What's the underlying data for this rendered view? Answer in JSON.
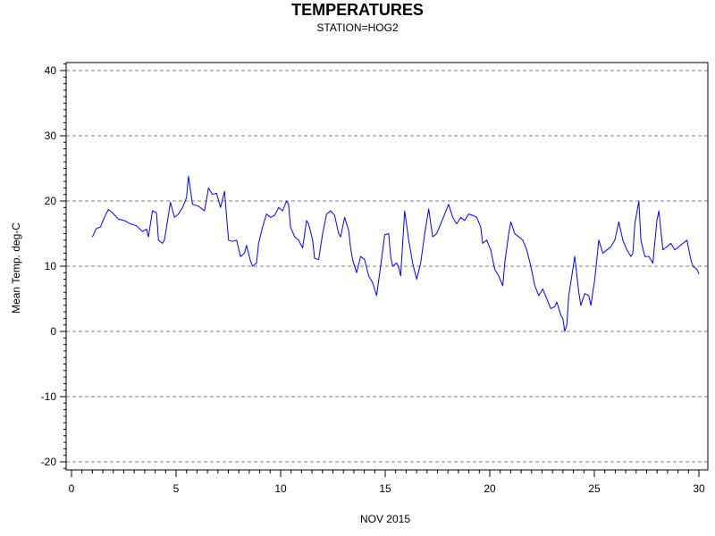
{
  "chart_data": {
    "type": "line",
    "title": "TEMPERATURES",
    "subtitle": "STATION=HOG2",
    "xlabel": "NOV 2015",
    "ylabel": "Mean Temp. deg-C",
    "xlim": [
      0,
      30
    ],
    "ylim": [
      -21,
      41
    ],
    "x_ticks": [
      0,
      5,
      10,
      15,
      20,
      25,
      30
    ],
    "y_ticks": [
      -20,
      -10,
      0,
      10,
      20,
      30,
      40
    ],
    "grid": "horizontal dashed",
    "line_color": "#0000ff",
    "series": [
      {
        "values": [
          [
            1.0,
            14.5
          ],
          [
            1.2,
            15.8
          ],
          [
            1.4,
            16.0
          ],
          [
            1.6,
            17.5
          ],
          [
            1.8,
            18.7
          ],
          [
            2.0,
            18.2
          ],
          [
            2.3,
            17.2
          ],
          [
            2.6,
            17.0
          ],
          [
            2.9,
            16.5
          ],
          [
            3.2,
            16.2
          ],
          [
            3.5,
            15.3
          ],
          [
            3.7,
            15.7
          ],
          [
            3.8,
            14.5
          ],
          [
            4.0,
            18.5
          ],
          [
            4.2,
            18.2
          ],
          [
            4.3,
            14.0
          ],
          [
            4.5,
            13.5
          ],
          [
            4.6,
            14.0
          ],
          [
            4.7,
            16.0
          ],
          [
            4.9,
            19.8
          ],
          [
            5.1,
            17.5
          ],
          [
            5.3,
            18.0
          ],
          [
            5.5,
            19.0
          ],
          [
            5.7,
            20.5
          ],
          [
            5.8,
            23.8
          ],
          [
            6.0,
            19.5
          ],
          [
            6.3,
            19.2
          ],
          [
            6.6,
            18.5
          ],
          [
            6.8,
            22.0
          ],
          [
            7.0,
            21.0
          ],
          [
            7.2,
            21.2
          ],
          [
            7.4,
            19.0
          ],
          [
            7.6,
            21.5
          ],
          [
            7.8,
            14.0
          ],
          [
            8.0,
            13.8
          ],
          [
            8.2,
            14.0
          ],
          [
            8.4,
            11.5
          ],
          [
            8.6,
            12.0
          ],
          [
            8.7,
            13.2
          ],
          [
            8.9,
            10.8
          ],
          [
            9.0,
            10.0
          ],
          [
            9.2,
            10.5
          ],
          [
            9.3,
            13.5
          ],
          [
            9.5,
            16.0
          ],
          [
            9.7,
            18.0
          ],
          [
            9.9,
            17.5
          ],
          [
            10.1,
            17.8
          ],
          [
            10.3,
            19.0
          ],
          [
            10.5,
            18.5
          ],
          [
            10.7,
            20.0
          ],
          [
            10.8,
            19.5
          ],
          [
            10.9,
            16.0
          ],
          [
            11.1,
            14.5
          ],
          [
            11.3,
            14.0
          ],
          [
            11.5,
            12.8
          ],
          [
            11.7,
            17.0
          ],
          [
            11.8,
            16.5
          ],
          [
            12.0,
            14.0
          ],
          [
            12.1,
            11.2
          ],
          [
            12.3,
            11.0
          ],
          [
            12.5,
            15.0
          ],
          [
            12.7,
            18.0
          ],
          [
            12.9,
            18.5
          ],
          [
            13.1,
            17.8
          ],
          [
            13.3,
            15.0
          ],
          [
            13.4,
            14.5
          ],
          [
            13.6,
            17.5
          ],
          [
            13.8,
            15.5
          ],
          [
            13.9,
            12.8
          ],
          [
            14.0,
            11.0
          ],
          [
            14.2,
            9.0
          ],
          [
            14.4,
            11.5
          ],
          [
            14.6,
            11.0
          ],
          [
            14.8,
            8.5
          ],
          [
            15.0,
            7.5
          ],
          [
            15.2,
            5.5
          ],
          [
            15.4,
            10.0
          ],
          [
            15.6,
            14.8
          ],
          [
            15.8,
            15.0
          ],
          [
            15.9,
            11.5
          ],
          [
            16.0,
            10.0
          ],
          [
            16.2,
            10.5
          ],
          [
            16.3,
            9.8
          ],
          [
            16.4,
            8.5
          ],
          [
            16.6,
            18.5
          ],
          [
            16.8,
            14.0
          ],
          [
            17.0,
            10.5
          ],
          [
            17.2,
            8.0
          ],
          [
            17.4,
            10.5
          ],
          [
            17.6,
            15.0
          ],
          [
            17.8,
            18.8
          ],
          [
            18.0,
            14.5
          ],
          [
            18.2,
            15.0
          ],
          [
            18.4,
            16.5
          ],
          [
            18.6,
            18.0
          ],
          [
            18.8,
            19.5
          ],
          [
            19.0,
            17.5
          ],
          [
            19.2,
            16.5
          ],
          [
            19.4,
            17.5
          ],
          [
            19.6,
            17.0
          ],
          [
            19.8,
            18.0
          ],
          [
            20.0,
            17.8
          ],
          [
            20.2,
            17.5
          ],
          [
            20.4,
            16.0
          ],
          [
            20.5,
            13.5
          ],
          [
            20.7,
            14.0
          ],
          [
            20.9,
            12.5
          ],
          [
            21.1,
            9.5
          ],
          [
            21.3,
            8.5
          ],
          [
            21.5,
            7.0
          ],
          [
            21.6,
            10.5
          ],
          [
            21.8,
            15.0
          ],
          [
            21.9,
            16.8
          ],
          [
            22.1,
            15.0
          ],
          [
            22.3,
            14.5
          ],
          [
            22.5,
            14.0
          ],
          [
            22.7,
            12.5
          ],
          [
            22.9,
            10.0
          ],
          [
            23.1,
            7.0
          ],
          [
            23.3,
            5.5
          ],
          [
            23.5,
            6.5
          ],
          [
            23.7,
            5.0
          ],
          [
            23.9,
            3.5
          ],
          [
            24.1,
            3.8
          ],
          [
            24.2,
            4.5
          ],
          [
            24.4,
            2.5
          ],
          [
            24.5,
            2.0
          ],
          [
            24.6,
            0.0
          ],
          [
            24.7,
            1.0
          ],
          [
            24.8,
            5.5
          ],
          [
            25.0,
            9.5
          ],
          [
            25.1,
            11.5
          ],
          [
            25.3,
            6.0
          ],
          [
            25.4,
            4.0
          ],
          [
            25.6,
            5.8
          ],
          [
            25.8,
            5.5
          ],
          [
            25.9,
            4.0
          ],
          [
            26.1,
            8.0
          ],
          [
            26.3,
            14.0
          ],
          [
            26.5,
            12.0
          ],
          [
            26.7,
            12.5
          ],
          [
            26.9,
            13.0
          ],
          [
            27.1,
            14.0
          ],
          [
            27.3,
            16.8
          ],
          [
            27.5,
            14.0
          ],
          [
            27.7,
            12.5
          ],
          [
            27.9,
            11.5
          ],
          [
            28.0,
            12.0
          ],
          [
            28.1,
            16.5
          ],
          [
            28.3,
            20.0
          ],
          [
            28.4,
            14.0
          ],
          [
            28.6,
            11.5
          ],
          [
            28.8,
            11.5
          ],
          [
            29.0,
            10.5
          ],
          [
            29.2,
            17.0
          ],
          [
            29.3,
            18.5
          ],
          [
            29.5,
            12.5
          ],
          [
            29.7,
            13.0
          ],
          [
            29.9,
            13.5
          ],
          [
            30.1,
            12.5
          ],
          [
            30.3,
            13.0
          ],
          [
            30.5,
            13.5
          ],
          [
            30.7,
            14.0
          ],
          [
            30.9,
            11.0
          ],
          [
            31.0,
            10.0
          ],
          [
            31.2,
            9.5
          ],
          [
            31.3,
            8.8
          ]
        ]
      }
    ]
  }
}
